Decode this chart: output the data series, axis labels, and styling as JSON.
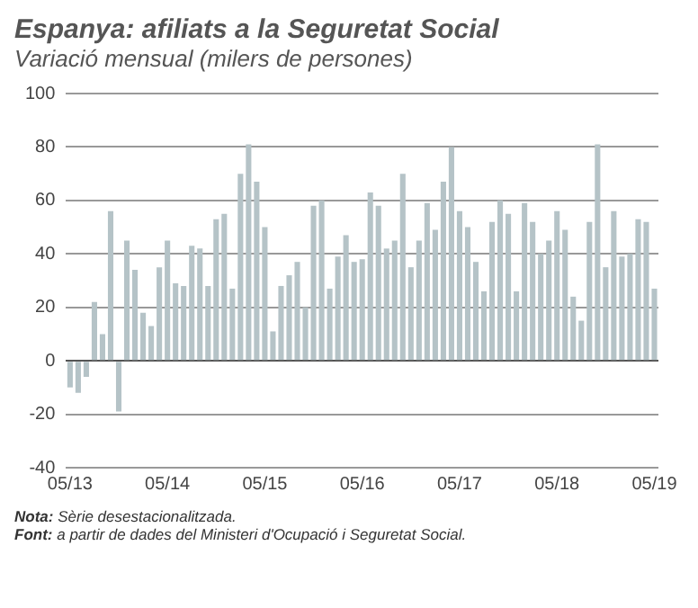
{
  "chart_data": {
    "type": "bar",
    "title": "Espanya: afiliats a la Seguretat Social",
    "subtitle": "Variació mensual (milers de persones)",
    "categories": [
      "05/13",
      null,
      null,
      null,
      null,
      null,
      null,
      null,
      null,
      null,
      null,
      null,
      "05/14",
      null,
      null,
      null,
      null,
      null,
      null,
      null,
      null,
      null,
      null,
      null,
      "05/15",
      null,
      null,
      null,
      null,
      null,
      null,
      null,
      null,
      null,
      null,
      null,
      "05/16",
      null,
      null,
      null,
      null,
      null,
      null,
      null,
      null,
      null,
      null,
      null,
      "05/17",
      null,
      null,
      null,
      null,
      null,
      null,
      null,
      null,
      null,
      null,
      null,
      "05/18",
      null,
      null,
      null,
      null,
      null,
      null,
      null,
      null,
      null,
      null,
      null,
      "05/19"
    ],
    "values": [
      -10,
      -12,
      -6,
      22,
      10,
      56,
      -19,
      45,
      34,
      18,
      13,
      35,
      45,
      29,
      28,
      43,
      42,
      28,
      53,
      55,
      27,
      70,
      81,
      67,
      50,
      11,
      28,
      32,
      37,
      20,
      58,
      60,
      27,
      39,
      47,
      37,
      38,
      63,
      58,
      42,
      45,
      70,
      35,
      45,
      59,
      49,
      67,
      80,
      56,
      50,
      37,
      26,
      52,
      60,
      55,
      26,
      59,
      52,
      40,
      45,
      56,
      49,
      24,
      15,
      52,
      81,
      35,
      56,
      39,
      40,
      53,
      52,
      27
    ],
    "color": "#b5c3c7",
    "ylim": [
      -40,
      100
    ],
    "yticks": [
      -40,
      -20,
      0,
      20,
      40,
      60,
      80,
      100
    ],
    "grid": "y",
    "annotations": [
      "Nota: Sèrie desestacionalitzada.",
      "Font: a partir de dades del Ministeri d'Ocupació i Seguretat Social."
    ]
  }
}
